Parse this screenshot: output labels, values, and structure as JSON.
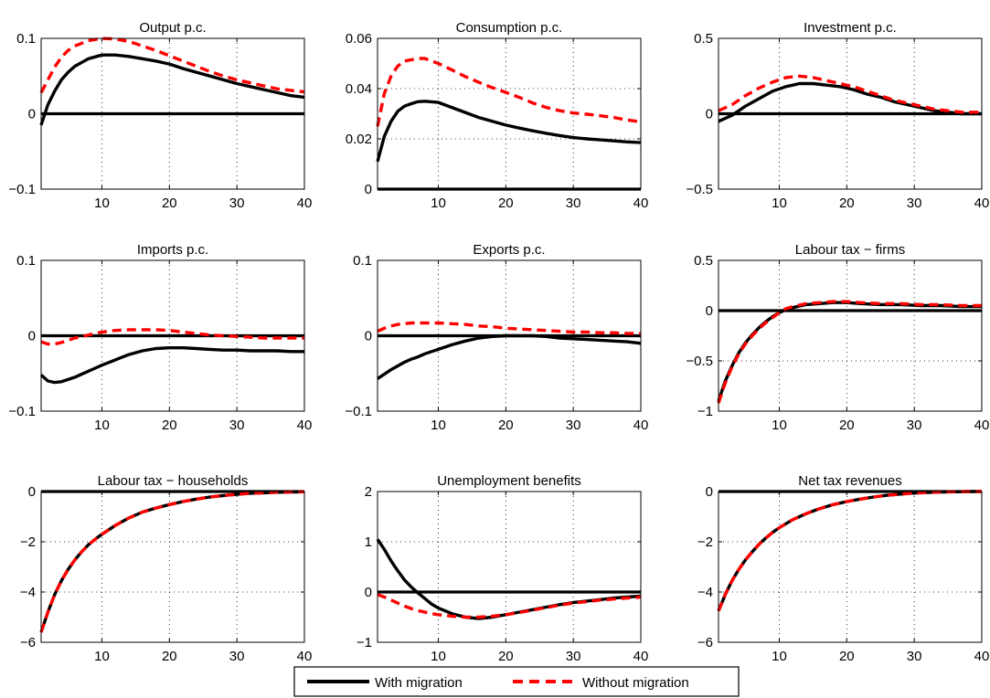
{
  "colors": {
    "with_migration": "#000000",
    "without_migration": "#ff0000"
  },
  "legend": {
    "with_label": "With migration",
    "without_label": "Without migration",
    "placement": "bottom-center"
  },
  "chart_data": [
    {
      "type": "line",
      "title": "Output p.c.",
      "xlabel": "",
      "ylabel": "",
      "xlim": [
        1,
        40
      ],
      "ylim": [
        -0.1,
        0.1
      ],
      "xticks": [
        10,
        20,
        30,
        40
      ],
      "yticks": [
        -0.1,
        0,
        0.1
      ],
      "ytick_labels": [
        "−0.1",
        "0",
        "0.1"
      ],
      "grid": "dotted",
      "zero_line": true,
      "x": [
        1,
        2,
        3,
        4,
        5,
        6,
        8,
        10,
        12,
        14,
        16,
        18,
        20,
        22,
        24,
        26,
        28,
        30,
        32,
        34,
        36,
        38,
        40
      ],
      "series": [
        {
          "name": "With migration",
          "style": "solid",
          "values": [
            -0.015,
            0.012,
            0.03,
            0.045,
            0.055,
            0.063,
            0.073,
            0.078,
            0.078,
            0.076,
            0.073,
            0.07,
            0.066,
            0.06,
            0.055,
            0.05,
            0.045,
            0.04,
            0.036,
            0.032,
            0.028,
            0.024,
            0.022
          ]
        },
        {
          "name": "Without migration",
          "style": "dashed",
          "values": [
            0.028,
            0.045,
            0.062,
            0.075,
            0.084,
            0.09,
            0.097,
            0.1,
            0.099,
            0.096,
            0.09,
            0.084,
            0.077,
            0.07,
            0.063,
            0.056,
            0.05,
            0.045,
            0.041,
            0.037,
            0.033,
            0.031,
            0.029
          ]
        }
      ]
    },
    {
      "type": "line",
      "title": "Consumption p.c.",
      "xlabel": "",
      "ylabel": "",
      "xlim": [
        1,
        40
      ],
      "ylim": [
        0,
        0.06
      ],
      "xticks": [
        10,
        20,
        30,
        40
      ],
      "yticks": [
        0,
        0.02,
        0.04,
        0.06
      ],
      "ytick_labels": [
        "0",
        "0.02",
        "0.04",
        "0.06"
      ],
      "grid": "dotted",
      "zero_line": true,
      "x": [
        1,
        2,
        3,
        4,
        5,
        6,
        7,
        8,
        10,
        12,
        14,
        16,
        18,
        20,
        22,
        24,
        26,
        28,
        30,
        32,
        34,
        36,
        38,
        40
      ],
      "series": [
        {
          "name": "With migration",
          "style": "solid",
          "values": [
            0.011,
            0.021,
            0.027,
            0.031,
            0.033,
            0.034,
            0.0348,
            0.035,
            0.0345,
            0.0325,
            0.0305,
            0.0285,
            0.027,
            0.0255,
            0.0243,
            0.0232,
            0.0222,
            0.0213,
            0.0205,
            0.02,
            0.0196,
            0.0192,
            0.0188,
            0.0185
          ]
        },
        {
          "name": "Without migration",
          "style": "dashed",
          "values": [
            0.025,
            0.038,
            0.045,
            0.049,
            0.051,
            0.0515,
            0.052,
            0.052,
            0.05,
            0.0475,
            0.0448,
            0.0425,
            0.0404,
            0.0385,
            0.0365,
            0.0343,
            0.0325,
            0.0312,
            0.0303,
            0.0298,
            0.0292,
            0.0285,
            0.0275,
            0.0268
          ]
        }
      ]
    },
    {
      "type": "line",
      "title": "Investment p.c.",
      "xlabel": "",
      "ylabel": "",
      "xlim": [
        1,
        40
      ],
      "ylim": [
        -0.5,
        0.5
      ],
      "xticks": [
        10,
        20,
        30,
        40
      ],
      "yticks": [
        -0.5,
        0,
        0.5
      ],
      "ytick_labels": [
        "−0.5",
        "0",
        "0.5"
      ],
      "grid": "dotted",
      "zero_line": true,
      "x": [
        1,
        3,
        5,
        7,
        9,
        11,
        13,
        15,
        17,
        19,
        21,
        23,
        25,
        27,
        29,
        31,
        33,
        35,
        37,
        40
      ],
      "series": [
        {
          "name": "With migration",
          "style": "solid",
          "values": [
            -0.05,
            -0.01,
            0.05,
            0.1,
            0.15,
            0.18,
            0.2,
            0.2,
            0.19,
            0.18,
            0.16,
            0.13,
            0.11,
            0.08,
            0.06,
            0.04,
            0.02,
            0.01,
            0.0,
            0.0
          ]
        },
        {
          "name": "Without migration",
          "style": "dashed",
          "values": [
            0.02,
            0.06,
            0.12,
            0.17,
            0.21,
            0.24,
            0.25,
            0.24,
            0.22,
            0.2,
            0.18,
            0.15,
            0.12,
            0.09,
            0.07,
            0.05,
            0.03,
            0.02,
            0.01,
            0.01
          ]
        }
      ]
    },
    {
      "type": "line",
      "title": "Imports p.c.",
      "xlabel": "",
      "ylabel": "",
      "xlim": [
        1,
        40
      ],
      "ylim": [
        -0.1,
        0.1
      ],
      "xticks": [
        10,
        20,
        30,
        40
      ],
      "yticks": [
        -0.1,
        0,
        0.1
      ],
      "ytick_labels": [
        "−0.1",
        "0",
        "0.1"
      ],
      "grid": "dotted",
      "zero_line": true,
      "x": [
        1,
        2,
        3,
        4,
        5,
        6,
        7,
        8,
        9,
        10,
        12,
        14,
        16,
        18,
        20,
        22,
        24,
        26,
        28,
        30,
        32,
        34,
        36,
        38,
        40
      ],
      "series": [
        {
          "name": "With migration",
          "style": "solid",
          "values": [
            -0.052,
            -0.06,
            -0.062,
            -0.061,
            -0.058,
            -0.055,
            -0.051,
            -0.047,
            -0.043,
            -0.039,
            -0.032,
            -0.025,
            -0.02,
            -0.017,
            -0.016,
            -0.016,
            -0.017,
            -0.018,
            -0.019,
            -0.019,
            -0.02,
            -0.02,
            -0.02,
            -0.021,
            -0.021
          ]
        },
        {
          "name": "Without migration",
          "style": "dashed",
          "values": [
            -0.008,
            -0.011,
            -0.011,
            -0.009,
            -0.006,
            -0.003,
            -0.001,
            0.001,
            0.003,
            0.005,
            0.007,
            0.008,
            0.008,
            0.008,
            0.007,
            0.005,
            0.003,
            0.001,
            0.0,
            -0.001,
            -0.002,
            -0.003,
            -0.003,
            -0.003,
            -0.003
          ]
        }
      ]
    },
    {
      "type": "line",
      "title": "Exports p.c.",
      "xlabel": "",
      "ylabel": "",
      "xlim": [
        1,
        40
      ],
      "ylim": [
        -0.1,
        0.1
      ],
      "xticks": [
        10,
        20,
        30,
        40
      ],
      "yticks": [
        -0.1,
        0,
        0.1
      ],
      "ytick_labels": [
        "−0.1",
        "0",
        "0.1"
      ],
      "grid": "dotted",
      "zero_line": true,
      "x": [
        1,
        2,
        3,
        4,
        5,
        6,
        7,
        8,
        9,
        10,
        12,
        14,
        16,
        18,
        20,
        22,
        24,
        26,
        28,
        30,
        32,
        34,
        36,
        38,
        40
      ],
      "series": [
        {
          "name": "With migration",
          "style": "solid",
          "values": [
            -0.057,
            -0.051,
            -0.045,
            -0.04,
            -0.035,
            -0.031,
            -0.028,
            -0.024,
            -0.021,
            -0.018,
            -0.012,
            -0.007,
            -0.003,
            -0.001,
            0.0,
            0.0,
            0.0,
            -0.001,
            -0.003,
            -0.004,
            -0.005,
            -0.006,
            -0.007,
            -0.008,
            -0.01
          ]
        },
        {
          "name": "Without migration",
          "style": "dashed",
          "values": [
            0.006,
            0.01,
            0.013,
            0.015,
            0.016,
            0.017,
            0.017,
            0.017,
            0.017,
            0.017,
            0.016,
            0.015,
            0.013,
            0.012,
            0.01,
            0.009,
            0.008,
            0.007,
            0.006,
            0.005,
            0.005,
            0.004,
            0.004,
            0.003,
            0.003
          ]
        }
      ]
    },
    {
      "type": "line",
      "title": "Labour tax − firms",
      "xlabel": "",
      "ylabel": "",
      "xlim": [
        1,
        40
      ],
      "ylim": [
        -1,
        0.5
      ],
      "xticks": [
        10,
        20,
        30,
        40
      ],
      "yticks": [
        -1,
        -0.5,
        0,
        0.5
      ],
      "ytick_labels": [
        "−1",
        "−0.5",
        "0",
        "0.5"
      ],
      "grid": "dotted",
      "zero_line": true,
      "x": [
        1,
        2,
        3,
        4,
        5,
        6,
        7,
        8,
        9,
        10,
        11,
        12,
        14,
        16,
        18,
        20,
        22,
        25,
        28,
        31,
        34,
        37,
        40
      ],
      "series": [
        {
          "name": "With migration",
          "style": "solid",
          "values": [
            -0.9,
            -0.7,
            -0.55,
            -0.42,
            -0.32,
            -0.24,
            -0.17,
            -0.11,
            -0.06,
            -0.02,
            0.01,
            0.03,
            0.06,
            0.07,
            0.08,
            0.08,
            0.07,
            0.06,
            0.06,
            0.05,
            0.05,
            0.04,
            0.04
          ]
        },
        {
          "name": "Without migration",
          "style": "dashed",
          "values": [
            -0.92,
            -0.72,
            -0.56,
            -0.43,
            -0.33,
            -0.25,
            -0.18,
            -0.12,
            -0.07,
            -0.02,
            0.02,
            0.04,
            0.07,
            0.08,
            0.09,
            0.09,
            0.08,
            0.07,
            0.07,
            0.06,
            0.06,
            0.05,
            0.05
          ]
        }
      ]
    },
    {
      "type": "line",
      "title": "Labour tax − households",
      "xlabel": "",
      "ylabel": "",
      "xlim": [
        1,
        40
      ],
      "ylim": [
        -6,
        0
      ],
      "xticks": [
        10,
        20,
        30,
        40
      ],
      "yticks": [
        -6,
        -4,
        -2,
        0
      ],
      "ytick_labels": [
        "−6",
        "−4",
        "−2",
        "0"
      ],
      "grid": "dotted",
      "zero_line": true,
      "x": [
        1,
        2,
        3,
        4,
        5,
        6,
        7,
        8,
        9,
        10,
        12,
        14,
        16,
        18,
        20,
        22,
        24,
        26,
        28,
        30,
        32,
        34,
        36,
        38,
        40
      ],
      "series": [
        {
          "name": "With migration",
          "style": "solid",
          "values": [
            -5.6,
            -4.8,
            -4.1,
            -3.55,
            -3.1,
            -2.72,
            -2.4,
            -2.12,
            -1.9,
            -1.7,
            -1.35,
            -1.05,
            -0.82,
            -0.66,
            -0.52,
            -0.4,
            -0.3,
            -0.22,
            -0.16,
            -0.11,
            -0.07,
            -0.05,
            -0.03,
            -0.02,
            -0.01
          ]
        },
        {
          "name": "Without migration",
          "style": "dashed",
          "values": [
            -5.6,
            -4.8,
            -4.1,
            -3.55,
            -3.1,
            -2.72,
            -2.4,
            -2.12,
            -1.9,
            -1.7,
            -1.35,
            -1.05,
            -0.82,
            -0.66,
            -0.52,
            -0.4,
            -0.3,
            -0.22,
            -0.16,
            -0.11,
            -0.07,
            -0.05,
            -0.03,
            -0.02,
            -0.01
          ]
        }
      ]
    },
    {
      "type": "line",
      "title": "Unemployment benefits",
      "xlabel": "",
      "ylabel": "",
      "xlim": [
        1,
        40
      ],
      "ylim": [
        -1,
        2
      ],
      "xticks": [
        10,
        20,
        30,
        40
      ],
      "yticks": [
        -1,
        0,
        1,
        2
      ],
      "ytick_labels": [
        "−1",
        "0",
        "1",
        "2"
      ],
      "grid": "dotted",
      "zero_line": true,
      "x": [
        1,
        2,
        3,
        4,
        5,
        6,
        7,
        8,
        9,
        10,
        12,
        14,
        16,
        18,
        20,
        22,
        24,
        26,
        28,
        30,
        32,
        34,
        36,
        38,
        40
      ],
      "series": [
        {
          "name": "With migration",
          "style": "solid",
          "values": [
            1.05,
            0.85,
            0.62,
            0.42,
            0.24,
            0.1,
            -0.02,
            -0.13,
            -0.24,
            -0.32,
            -0.43,
            -0.5,
            -0.53,
            -0.5,
            -0.45,
            -0.4,
            -0.35,
            -0.3,
            -0.25,
            -0.21,
            -0.18,
            -0.15,
            -0.12,
            -0.1,
            -0.08
          ]
        },
        {
          "name": "Without migration",
          "style": "dashed",
          "values": [
            -0.05,
            -0.1,
            -0.16,
            -0.22,
            -0.28,
            -0.33,
            -0.37,
            -0.4,
            -0.43,
            -0.45,
            -0.48,
            -0.5,
            -0.5,
            -0.48,
            -0.45,
            -0.41,
            -0.36,
            -0.31,
            -0.26,
            -0.22,
            -0.19,
            -0.16,
            -0.14,
            -0.12,
            -0.1
          ]
        }
      ]
    },
    {
      "type": "line",
      "title": "Net tax revenues",
      "xlabel": "",
      "ylabel": "",
      "xlim": [
        1,
        40
      ],
      "ylim": [
        -6,
        0
      ],
      "xticks": [
        10,
        20,
        30,
        40
      ],
      "yticks": [
        -6,
        -4,
        -2,
        0
      ],
      "ytick_labels": [
        "−6",
        "−4",
        "−2",
        "0"
      ],
      "grid": "dotted",
      "zero_line": true,
      "x": [
        1,
        2,
        3,
        4,
        5,
        6,
        7,
        8,
        9,
        10,
        12,
        14,
        16,
        18,
        20,
        22,
        24,
        26,
        28,
        30,
        32,
        34,
        36,
        38,
        40
      ],
      "series": [
        {
          "name": "With migration",
          "style": "solid",
          "values": [
            -4.75,
            -4.1,
            -3.55,
            -3.1,
            -2.72,
            -2.4,
            -2.1,
            -1.85,
            -1.63,
            -1.44,
            -1.12,
            -0.88,
            -0.68,
            -0.52,
            -0.4,
            -0.3,
            -0.22,
            -0.15,
            -0.1,
            -0.06,
            -0.04,
            -0.02,
            -0.01,
            0.0,
            0.0
          ]
        },
        {
          "name": "Without migration",
          "style": "dashed",
          "values": [
            -4.75,
            -4.1,
            -3.55,
            -3.1,
            -2.72,
            -2.4,
            -2.1,
            -1.85,
            -1.63,
            -1.44,
            -1.12,
            -0.88,
            -0.68,
            -0.52,
            -0.4,
            -0.3,
            -0.22,
            -0.15,
            -0.1,
            -0.06,
            -0.04,
            -0.02,
            -0.01,
            0.0,
            0.0
          ]
        }
      ]
    }
  ]
}
